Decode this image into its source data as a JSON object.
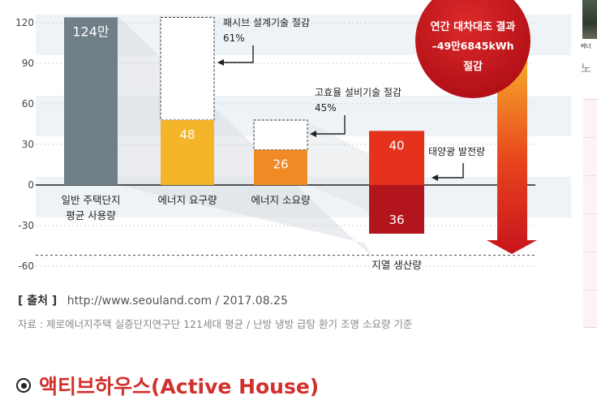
{
  "chart_data": {
    "type": "bar",
    "ylim": [
      -60,
      130
    ],
    "yticks": [
      120,
      90,
      60,
      30,
      0,
      -30,
      -60
    ],
    "categories": [
      {
        "key": "general",
        "label_lines": [
          "일반 주택단지",
          "평균 사용량"
        ]
      },
      {
        "key": "demand",
        "label_lines": [
          "에너지 요구량"
        ]
      },
      {
        "key": "consumption",
        "label_lines": [
          "에너지 소요량"
        ]
      },
      {
        "key": "production",
        "label_lines": [
          "지열 생산량"
        ]
      }
    ],
    "bars": [
      {
        "category": "general",
        "value": 124,
        "label": "124만",
        "color": "#6f7e87"
      },
      {
        "category": "demand",
        "value": 48,
        "outline_top": 124,
        "label": "48",
        "color": "#f5b52b"
      },
      {
        "category": "consumption",
        "value": 26,
        "outline_top": 48,
        "label": "26",
        "color": "#f08a24"
      },
      {
        "category": "production",
        "segment": "solar",
        "value": 40,
        "label": "40",
        "color": "#e5321c"
      },
      {
        "category": "production",
        "segment": "geothermal",
        "value": -36,
        "label": "36",
        "color": "#b2161c"
      }
    ],
    "annotations": {
      "passive": {
        "line1": "패시브 설계기술 절감",
        "line2": "61%"
      },
      "efficiency": {
        "line1": "고효율 설비기술 절감",
        "line2": "45%"
      },
      "solar": "태양광 발전량"
    },
    "result_badge": {
      "line1": "연간 대차대조 결과",
      "line2": "–49만6845kWh",
      "line3": "절감",
      "color": "#c8141d"
    },
    "gradient_arrow_colors": [
      "#f7b52c",
      "#e8441d",
      "#c8141d"
    ]
  },
  "source": {
    "label": "[ 출처 ]",
    "text": "http://www.seouland.com / 2017.08.25"
  },
  "note": "자료 : 제로에너지주택 실증단지연구단 121세대 평균 / 난방 냉방 급탕 환기 조명 소요량 기준",
  "section_heading": {
    "title": "액티브하우스(Active House)",
    "icon": "target-icon"
  },
  "side": {
    "caption": "베너",
    "text": "노"
  }
}
